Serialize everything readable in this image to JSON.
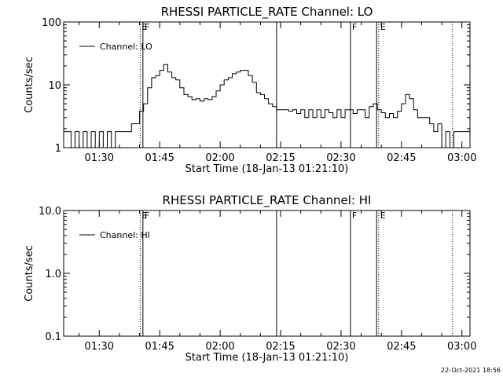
{
  "footer": "22-Oct-2021 18:56",
  "chart_data": [
    {
      "type": "line",
      "title": "RHESSI PARTICLE_RATE Channel: LO",
      "xlabel": "Start Time (18-Jan-13 01:21:10)",
      "ylabel": "Counts/sec",
      "y_scale": "log",
      "ylim": [
        1,
        100
      ],
      "y_ticks": [
        {
          "value": 1,
          "label": "1"
        },
        {
          "value": 10,
          "label": "10"
        },
        {
          "value": 100,
          "label": "100"
        }
      ],
      "xlim": [
        "01:21:10",
        "03:02:00"
      ],
      "x_ticks": [
        "01:30",
        "01:45",
        "02:00",
        "02:15",
        "02:30",
        "02:45",
        "03:00"
      ],
      "legend": {
        "label": "Channel: LO",
        "placement": "top-left"
      },
      "markers": [
        {
          "time": "01:40:10",
          "style": "dotted",
          "label": "E"
        },
        {
          "time": "01:40:50",
          "style": "solid",
          "label": "F"
        },
        {
          "time": "02:14:00",
          "style": "solid",
          "label": ""
        },
        {
          "time": "02:32:20",
          "style": "solid",
          "label": "F"
        },
        {
          "time": "02:38:50",
          "style": "solid",
          "label": ""
        },
        {
          "time": "02:39:20",
          "style": "dotted",
          "label": "E"
        },
        {
          "time": "02:57:40",
          "style": "dotted",
          "label": ""
        }
      ],
      "series": [
        {
          "name": "Channel: LO",
          "x": [
            "01:21:10",
            "01:23:00",
            "01:24:00",
            "01:25:00",
            "01:26:00",
            "01:27:00",
            "01:28:00",
            "01:29:00",
            "01:30:00",
            "01:31:00",
            "01:32:00",
            "01:33:00",
            "01:34:00",
            "01:35:00",
            "01:36:00",
            "01:37:00",
            "01:38:00",
            "01:39:00",
            "01:40:00",
            "01:41:00",
            "01:42:00",
            "01:43:00",
            "01:44:00",
            "01:45:00",
            "01:46:00",
            "01:47:00",
            "01:48:00",
            "01:49:00",
            "01:50:00",
            "01:51:00",
            "01:52:00",
            "01:53:00",
            "01:54:00",
            "01:55:00",
            "01:56:00",
            "01:57:00",
            "01:58:00",
            "01:59:00",
            "02:00:00",
            "02:01:00",
            "02:02:00",
            "02:03:00",
            "02:04:00",
            "02:05:00",
            "02:06:00",
            "02:07:00",
            "02:08:00",
            "02:09:00",
            "02:10:00",
            "02:11:00",
            "02:12:00",
            "02:13:00",
            "02:14:00",
            "02:16:00",
            "02:17:00",
            "02:18:00",
            "02:19:00",
            "02:20:00",
            "02:21:00",
            "02:22:00",
            "02:23:00",
            "02:24:00",
            "02:25:00",
            "02:26:00",
            "02:27:00",
            "02:28:00",
            "02:29:00",
            "02:30:00",
            "02:31:00",
            "02:32:00",
            "02:33:00",
            "02:34:00",
            "02:35:00",
            "02:36:00",
            "02:37:00",
            "02:38:00",
            "02:39:00",
            "02:40:00",
            "02:41:00",
            "02:42:00",
            "02:43:00",
            "02:44:00",
            "02:45:00",
            "02:46:00",
            "02:47:00",
            "02:48:00",
            "02:49:00",
            "02:50:00",
            "02:51:00",
            "02:52:00",
            "02:53:00",
            "02:54:00",
            "02:55:00",
            "02:56:00",
            "02:57:00",
            "02:58:00"
          ],
          "y": [
            1.8,
            1,
            1.8,
            1,
            1.8,
            1,
            1.8,
            1,
            1.8,
            1,
            1.8,
            1,
            1.8,
            1.8,
            1.8,
            1.8,
            2.4,
            2.4,
            3.8,
            5,
            9,
            13,
            14,
            17,
            21,
            16,
            13,
            12,
            9,
            7,
            6.5,
            5.8,
            6,
            5.5,
            6,
            5.8,
            6.5,
            8,
            10,
            12,
            13,
            15,
            16,
            17,
            17,
            14,
            11,
            7.5,
            7,
            6,
            5,
            4.5,
            4,
            4,
            3.8,
            4,
            3.5,
            4,
            3,
            4,
            3,
            4,
            3,
            4,
            3.6,
            3,
            4,
            3,
            4,
            4,
            3.5,
            4,
            4,
            3,
            4.5,
            5,
            4,
            3.6,
            3,
            3.5,
            3,
            3.8,
            5,
            7,
            6,
            4,
            3,
            3,
            3,
            2.4,
            1.8,
            2.4,
            1,
            1.8,
            1,
            1.8
          ]
        }
      ]
    },
    {
      "type": "line",
      "title": "RHESSI PARTICLE_RATE Channel: HI",
      "xlabel": "Start Time (18-Jan-13 01:21:10)",
      "ylabel": "Counts/sec",
      "y_scale": "log",
      "ylim": [
        0.1,
        10
      ],
      "y_ticks": [
        {
          "value": 0.1,
          "label": "0.1"
        },
        {
          "value": 1,
          "label": "1.0"
        },
        {
          "value": 10,
          "label": "10.0"
        }
      ],
      "xlim": [
        "01:21:10",
        "03:02:00"
      ],
      "x_ticks": [
        "01:30",
        "01:45",
        "02:00",
        "02:15",
        "02:30",
        "02:45",
        "03:00"
      ],
      "legend": {
        "label": "Channel: HI",
        "placement": "top-left"
      },
      "markers": [
        {
          "time": "01:40:10",
          "style": "dotted",
          "label": "E"
        },
        {
          "time": "01:40:50",
          "style": "solid",
          "label": "F"
        },
        {
          "time": "02:14:00",
          "style": "solid",
          "label": ""
        },
        {
          "time": "02:32:20",
          "style": "solid",
          "label": "F"
        },
        {
          "time": "02:38:50",
          "style": "solid",
          "label": ""
        },
        {
          "time": "02:39:20",
          "style": "dotted",
          "label": "E"
        },
        {
          "time": "02:57:40",
          "style": "dotted",
          "label": ""
        }
      ],
      "series": [
        {
          "name": "Channel: HI",
          "x": [],
          "y": []
        }
      ]
    }
  ]
}
